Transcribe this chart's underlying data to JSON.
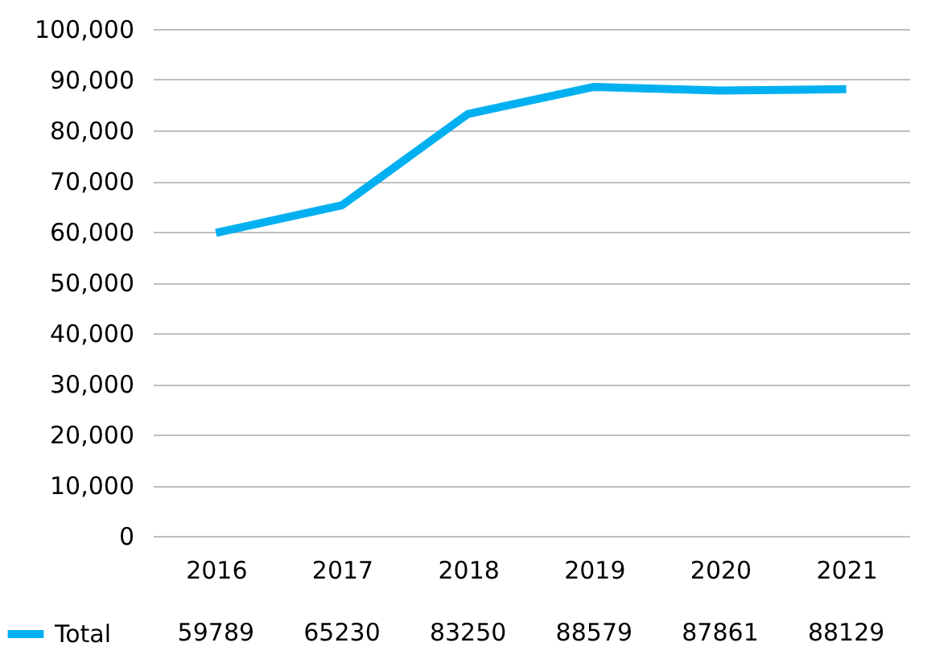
{
  "chart_data": {
    "type": "line",
    "categories": [
      "2016",
      "2017",
      "2018",
      "2019",
      "2020",
      "2021"
    ],
    "series": [
      {
        "name": "Total",
        "color": "#00b0f0",
        "values": [
          59789,
          65230,
          83250,
          88579,
          87861,
          88129
        ]
      }
    ],
    "ylim": [
      0,
      100000
    ],
    "yticks": [
      0,
      {
        "value": 10000,
        "label": "10,000"
      },
      {
        "value": 20000,
        "label": "20,000"
      },
      {
        "value": 30000,
        "label": "30,000"
      },
      {
        "value": 40000,
        "label": "40,000"
      },
      {
        "value": 50000,
        "label": "50,000"
      },
      {
        "value": 60000,
        "label": "60,000"
      },
      {
        "value": 70000,
        "label": "70,000"
      },
      {
        "value": 80000,
        "label": "80,000"
      },
      {
        "value": 90000,
        "label": "90,000"
      },
      {
        "value": 100000,
        "label": "100,000"
      }
    ],
    "grid": "y",
    "legend": "bottom",
    "data_labels": true
  }
}
